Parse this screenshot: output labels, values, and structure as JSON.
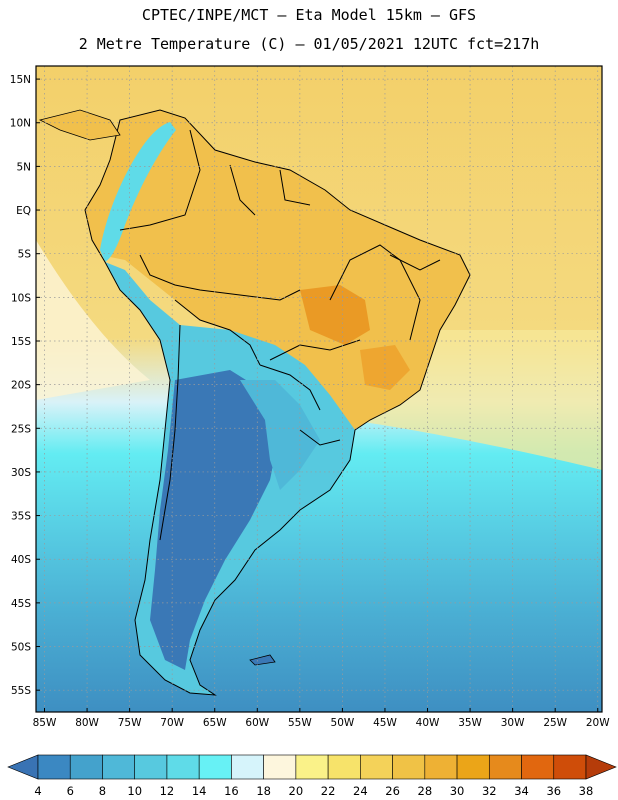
{
  "header": {
    "line1": "CPTEC/INPE/MCT –  Eta Model 15km – GFS",
    "line2": "2 Metre Temperature (C) – 01/05/2021 12UTC fct=217h"
  },
  "axes": {
    "lat_labels": [
      "15N",
      "10N",
      "5N",
      "EQ",
      "5S",
      "10S",
      "15S",
      "20S",
      "25S",
      "30S",
      "35S",
      "40S",
      "45S",
      "50S",
      "55S"
    ],
    "lon_labels": [
      "85W",
      "80W",
      "75W",
      "70W",
      "65W",
      "60W",
      "55W",
      "50W",
      "45W",
      "40W",
      "35W",
      "30W",
      "25W",
      "20W"
    ]
  },
  "colorbar": {
    "levels": [
      "4",
      "6",
      "8",
      "10",
      "12",
      "14",
      "16",
      "18",
      "20",
      "22",
      "24",
      "26",
      "28",
      "30",
      "32",
      "34",
      "36",
      "38"
    ],
    "colors": [
      "#3973b4",
      "#3b88c2",
      "#44a2cc",
      "#4fb8d8",
      "#57c9df",
      "#5fdbe8",
      "#67f1f5",
      "#d6f4fb",
      "#fdf6dd",
      "#faf289",
      "#f7e36a",
      "#f4d259",
      "#f0c246",
      "#eeb134",
      "#eba518",
      "#e68a1c",
      "#e1670f",
      "#cf4d09",
      "#b53c0a"
    ]
  },
  "colors": {
    "ocean_cold": "#3f93c6",
    "ocean_warm": "#f3cf62",
    "border": "#000000"
  }
}
